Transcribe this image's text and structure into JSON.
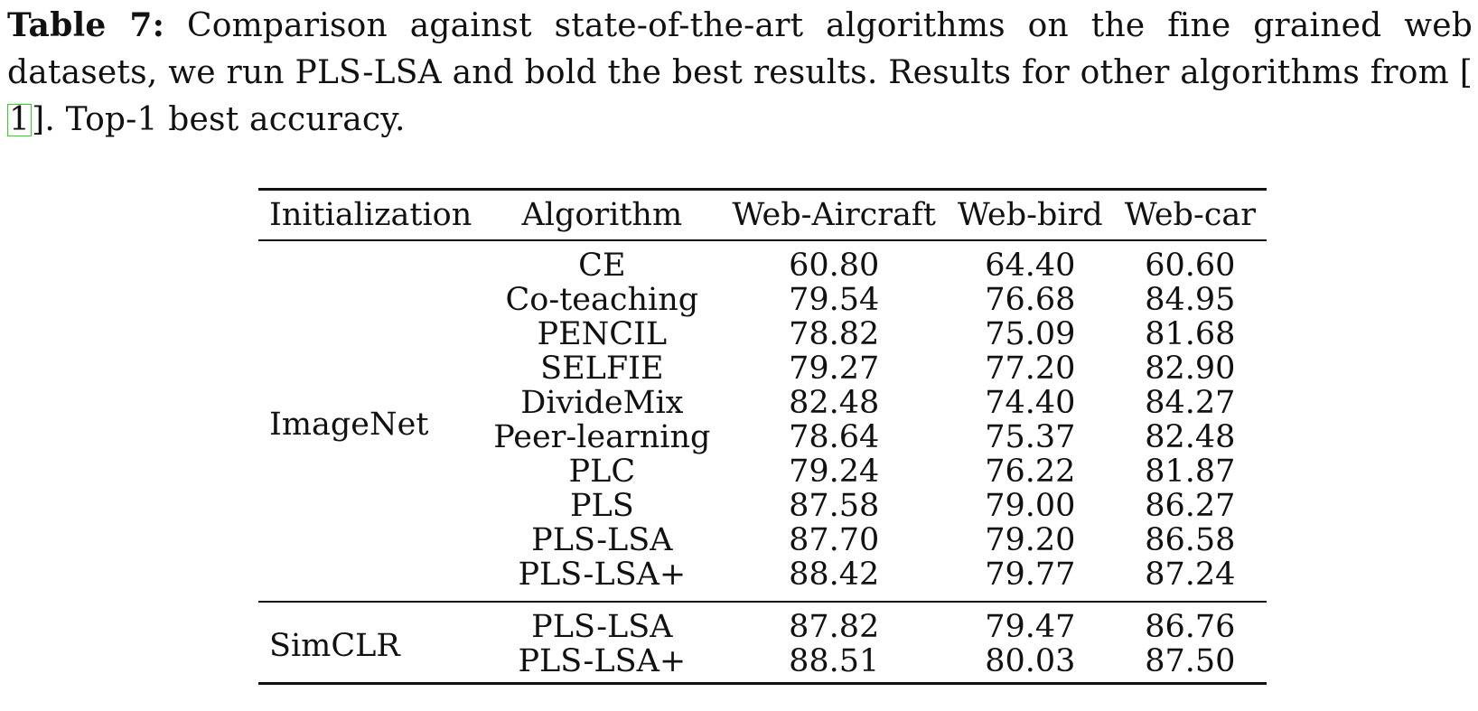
{
  "caption": {
    "label": "Table 7:",
    "text_before_cite": " Comparison against state-of-the-art algorithms on the fine grained web datasets, we run PLS-LSA and bold the best results. Results for other algorithms from ",
    "cite_open": "[",
    "cite": "1",
    "cite_close": "]",
    "text_after_cite": ". Top-1 best accuracy."
  },
  "table": {
    "headers": {
      "initialization": "Initialization",
      "algorithm": "Algorithm",
      "web_aircraft": "Web-Aircraft",
      "web_bird": "Web-bird",
      "web_car": "Web-car"
    },
    "groups": [
      {
        "initialization": "ImageNet",
        "rows": [
          {
            "algorithm": "CE",
            "web_aircraft": "60.80",
            "web_bird": "64.40",
            "web_car": "60.60"
          },
          {
            "algorithm": "Co-teaching",
            "web_aircraft": "79.54",
            "web_bird": "76.68",
            "web_car": "84.95"
          },
          {
            "algorithm": "PENCIL",
            "web_aircraft": "78.82",
            "web_bird": "75.09",
            "web_car": "81.68"
          },
          {
            "algorithm": "SELFIE",
            "web_aircraft": "79.27",
            "web_bird": "77.20",
            "web_car": "82.90"
          },
          {
            "algorithm": "DivideMix",
            "web_aircraft": "82.48",
            "web_bird": "74.40",
            "web_car": "84.27"
          },
          {
            "algorithm": "Peer-learning",
            "web_aircraft": "78.64",
            "web_bird": "75.37",
            "web_car": "82.48"
          },
          {
            "algorithm": "PLC",
            "web_aircraft": "79.24",
            "web_bird": "76.22",
            "web_car": "81.87"
          },
          {
            "algorithm": "PLS",
            "web_aircraft": "87.58",
            "web_bird": "79.00",
            "web_car": "86.27"
          },
          {
            "algorithm": "PLS-LSA",
            "web_aircraft": "87.70",
            "web_bird": "79.20",
            "web_car": "86.58"
          },
          {
            "algorithm": "PLS-LSA+",
            "web_aircraft": "88.42",
            "web_bird": "79.77",
            "web_car": "87.24"
          }
        ]
      },
      {
        "initialization": "SimCLR",
        "rows": [
          {
            "algorithm": "PLS-LSA",
            "web_aircraft": "87.82",
            "web_bird": "79.47",
            "web_car": "86.76"
          },
          {
            "algorithm": "PLS-LSA+",
            "web_aircraft": "88.51",
            "web_bird": "80.03",
            "web_car": "87.50"
          }
        ]
      }
    ]
  }
}
